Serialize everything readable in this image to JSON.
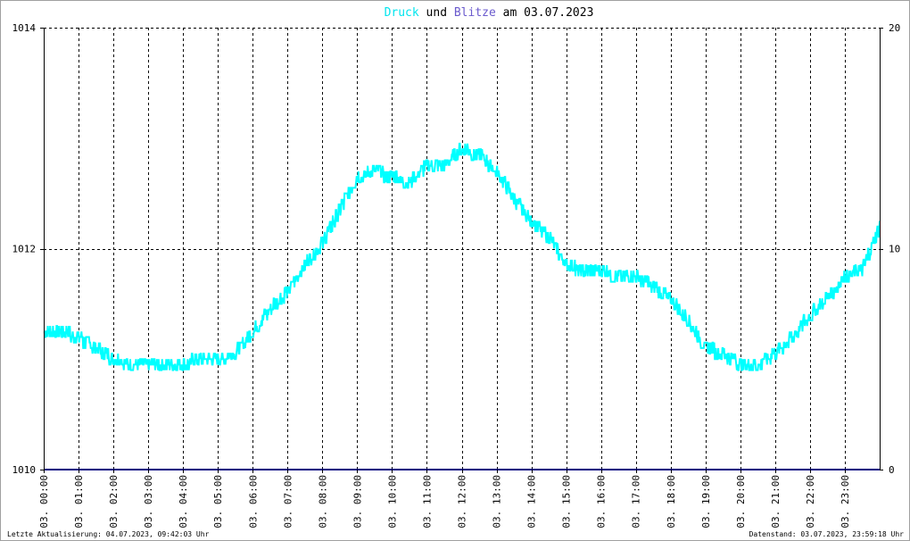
{
  "chart_data": {
    "type": "line",
    "title_parts": [
      {
        "text": "Druck",
        "color": "#00e5ee"
      },
      {
        "text": " und ",
        "color": "#000000"
      },
      {
        "text": "Blitze",
        "color": "#6a5acd"
      },
      {
        "text": " am 03.07.2023",
        "color": "#000000"
      }
    ],
    "y_left": {
      "ticks": [
        "1010",
        "1012",
        "1014"
      ],
      "range": [
        1010,
        1014
      ]
    },
    "y_right": {
      "ticks": [
        "0",
        "10",
        "20"
      ],
      "range": [
        0,
        20
      ]
    },
    "x_range_hours": [
      0,
      24
    ],
    "x_ticks": [
      "03. 00:00",
      "03. 01:00",
      "03. 02:00",
      "03. 03:00",
      "03. 04:00",
      "03. 05:00",
      "03. 06:00",
      "03. 07:00",
      "03. 08:00",
      "03. 09:00",
      "03. 10:00",
      "03. 11:00",
      "03. 12:00",
      "03. 13:00",
      "03. 14:00",
      "03. 15:00",
      "03. 16:00",
      "03. 17:00",
      "03. 18:00",
      "03. 19:00",
      "03. 20:00",
      "03. 21:00",
      "03. 22:00",
      "03. 23:00"
    ],
    "grid": true,
    "series": [
      {
        "name": "Druck",
        "axis": "left",
        "color": "#00ffff",
        "hours": [
          0,
          0.5,
          1,
          1.5,
          2,
          2.5,
          3,
          3.5,
          4,
          4.5,
          5,
          5.5,
          6,
          6.5,
          7,
          7.5,
          8,
          8.5,
          9,
          9.5,
          10,
          10.5,
          11,
          11.5,
          12,
          12.5,
          13,
          13.5,
          14,
          14.5,
          15,
          15.5,
          16,
          16.5,
          17,
          17.5,
          18,
          18.5,
          19,
          19.5,
          20,
          20.5,
          21,
          21.5,
          22,
          22.5,
          23,
          23.5,
          24
        ],
        "values": [
          1011.25,
          1011.25,
          1011.2,
          1011.1,
          1011.0,
          1010.95,
          1010.95,
          1010.95,
          1010.95,
          1011.0,
          1011.0,
          1011.05,
          1011.25,
          1011.45,
          1011.6,
          1011.85,
          1012.05,
          1012.35,
          1012.65,
          1012.7,
          1012.65,
          1012.6,
          1012.75,
          1012.75,
          1012.9,
          1012.85,
          1012.7,
          1012.45,
          1012.25,
          1012.1,
          1011.85,
          1011.8,
          1011.8,
          1011.75,
          1011.75,
          1011.65,
          1011.55,
          1011.35,
          1011.1,
          1011.05,
          1010.95,
          1010.95,
          1011.05,
          1011.2,
          1011.4,
          1011.55,
          1011.75,
          1011.8,
          1012.2
        ]
      },
      {
        "name": "Blitze",
        "axis": "right",
        "color": "#000080",
        "hours": [
          0,
          24
        ],
        "values": [
          0,
          0
        ]
      }
    ]
  },
  "footer": {
    "left": "Letzte Aktualisierung: 04.07.2023, 09:42:03 Uhr",
    "right": "Datenstand: 03.07.2023, 23:59:18 Uhr"
  }
}
